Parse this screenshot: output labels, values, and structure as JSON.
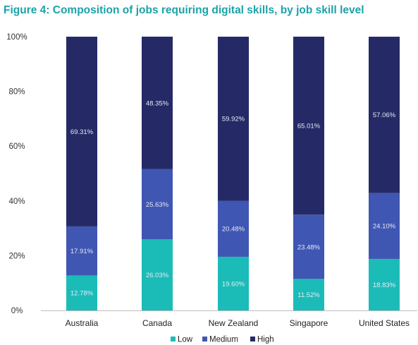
{
  "title": "Figure 4: Composition of jobs requiring digital skills, by job skill level",
  "chart_data": {
    "type": "bar",
    "stacked": true,
    "categories": [
      "Australia",
      "Canada",
      "New Zealand",
      "Singapore",
      "United States"
    ],
    "series": [
      {
        "name": "Low",
        "color": "#1bbcb8",
        "values": [
          12.78,
          26.03,
          19.6,
          11.52,
          18.83
        ],
        "labels": [
          "12.78%",
          "26.03%",
          "19.60%",
          "11.52%",
          "18.83%"
        ]
      },
      {
        "name": "Medium",
        "color": "#3f56b3",
        "values": [
          17.91,
          25.63,
          20.48,
          23.48,
          24.1
        ],
        "labels": [
          "17.91%",
          "25.63%",
          "20.48%",
          "23.48%",
          "24.10%"
        ]
      },
      {
        "name": "High",
        "color": "#252a66",
        "values": [
          69.31,
          48.35,
          59.92,
          65.01,
          57.06
        ],
        "labels": [
          "69.31%",
          "48.35%",
          "59.92%",
          "65.01%",
          "57.06%"
        ]
      }
    ],
    "ylim": [
      0,
      100
    ],
    "yticks": [
      "0%",
      "20%",
      "40%",
      "60%",
      "80%",
      "100%"
    ],
    "legend_position": "bottom",
    "grid": false
  }
}
